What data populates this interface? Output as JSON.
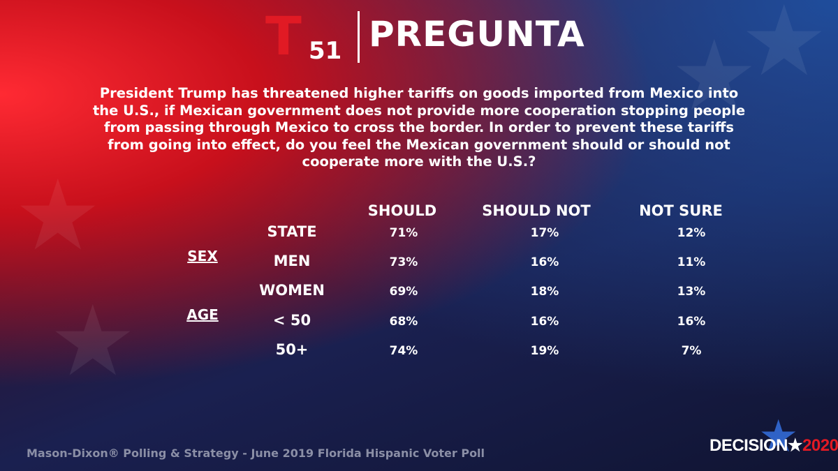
{
  "header": {
    "logo_letter": "T",
    "logo_number": "51",
    "title": "PREGUNTA"
  },
  "question": "President Trump has threatened higher tariffs on goods imported from Mexico into the U.S., if Mexican government does not provide more cooperation stopping people from passing through Mexico to cross the border. In order to prevent these tariffs from going into effect, do you feel the Mexican government should or should not cooperate more with the U.S.?",
  "table": {
    "columns": [
      "SHOULD",
      "SHOULD NOT",
      "NOT SURE"
    ],
    "groups": [
      "SEX",
      "AGE"
    ],
    "rows": [
      {
        "label": "STATE",
        "values": [
          "71%",
          "17%",
          "12%"
        ]
      },
      {
        "label": "MEN",
        "values": [
          "73%",
          "16%",
          "11%"
        ]
      },
      {
        "label": "WOMEN",
        "values": [
          "69%",
          "18%",
          "13%"
        ]
      },
      {
        "label": "< 50",
        "values": [
          "68%",
          "16%",
          "16%"
        ]
      },
      {
        "label": "50+",
        "values": [
          "74%",
          "19%",
          "7%"
        ]
      }
    ]
  },
  "footer": {
    "source": "Mason-Dixon® Polling & Strategy - June 2019 Florida Hispanic Voter Poll",
    "brand_word": "DECISION",
    "brand_star": "★",
    "brand_year": "2020"
  },
  "colors": {
    "telemundo_red": "#e11a24",
    "brand_blue": "#2f62c6",
    "source_gray": "#8b8fa6"
  }
}
